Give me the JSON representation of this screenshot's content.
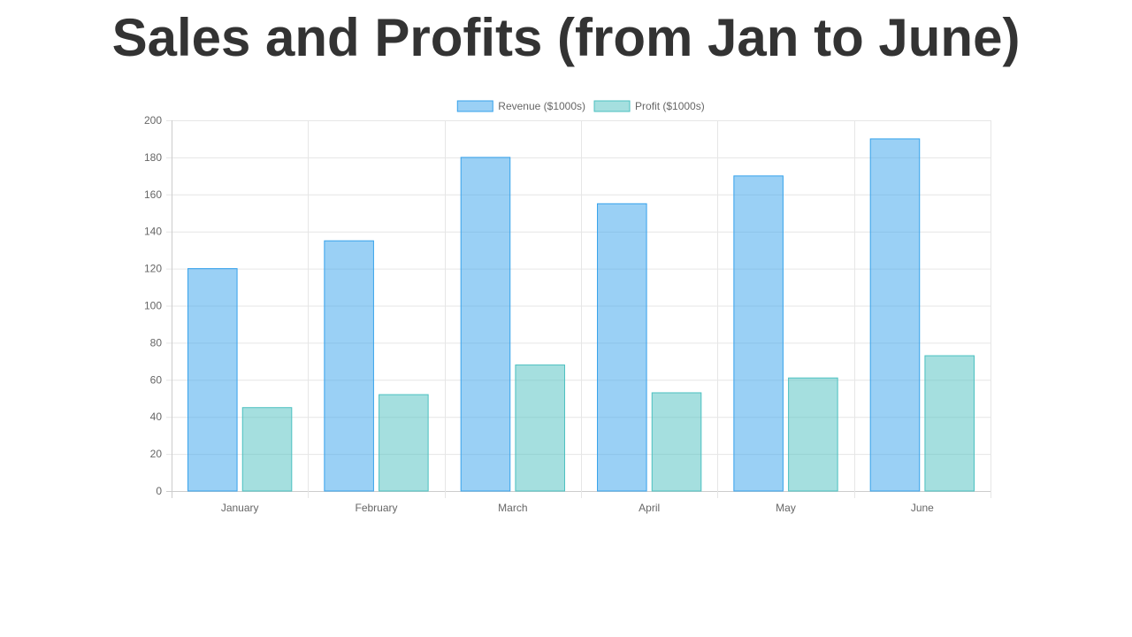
{
  "title": "Sales and Profits (from Jan to June)",
  "colors": {
    "revenue_fill": "rgba(54,162,235,0.5)",
    "revenue_stroke": "#36a2eb",
    "profit_fill": "rgba(75,192,192,0.5)",
    "profit_stroke": "#4bc0c0",
    "grid": "#e6e6e6",
    "title": "#333333",
    "text": "#666666"
  },
  "chart_data": {
    "type": "bar",
    "title": "Sales and Profits (from Jan to June)",
    "categories": [
      "January",
      "February",
      "March",
      "April",
      "May",
      "June"
    ],
    "series": [
      {
        "name": "Revenue ($1000s)",
        "values": [
          120,
          135,
          180,
          155,
          170,
          190
        ]
      },
      {
        "name": "Profit ($1000s)",
        "values": [
          45,
          52,
          68,
          53,
          61,
          73
        ]
      }
    ],
    "ylim": [
      0,
      200
    ],
    "yticks": [
      0,
      20,
      40,
      60,
      80,
      100,
      120,
      140,
      160,
      180,
      200
    ],
    "grid": true,
    "legend_position": "top"
  }
}
